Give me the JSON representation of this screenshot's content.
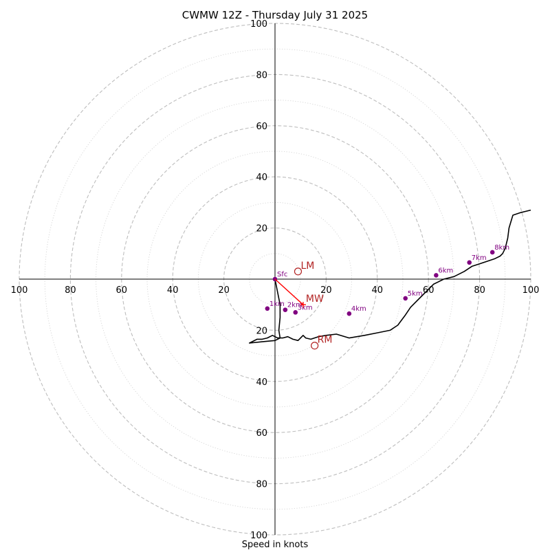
{
  "chart_data": {
    "type": "hodograph",
    "title": "CWMW 12Z - Thursday July 31 2025",
    "xlabel": "Speed in knots",
    "range": [
      -100,
      100
    ],
    "ring_major_step": 20,
    "ring_minor_step": 10,
    "axis_tick_labels": {
      "x": [
        "100",
        "80",
        "60",
        "40",
        "20",
        "20",
        "40",
        "60",
        "80",
        "100"
      ],
      "y": [
        "100",
        "80",
        "60",
        "40",
        "20",
        "20",
        "40",
        "60",
        "80",
        "100"
      ]
    },
    "axis_tick_values": {
      "x": [
        -100,
        -80,
        -60,
        -40,
        -20,
        20,
        40,
        60,
        80,
        100
      ],
      "y": [
        100,
        80,
        60,
        40,
        20,
        -20,
        -40,
        -60,
        -80,
        -100
      ]
    },
    "trace": {
      "color": "#000000",
      "points": [
        [
          0,
          0
        ],
        [
          1,
          -5
        ],
        [
          2,
          -10
        ],
        [
          2,
          -15
        ],
        [
          1.5,
          -20
        ],
        [
          2,
          -23
        ],
        [
          0,
          -24
        ],
        [
          -5,
          -24.5
        ],
        [
          -10,
          -25
        ],
        [
          -7,
          -23.5
        ],
        [
          -5,
          -23.5
        ],
        [
          -3,
          -23
        ],
        [
          -1,
          -22
        ],
        [
          1,
          -23
        ],
        [
          3,
          -23
        ],
        [
          5,
          -22.5
        ],
        [
          7,
          -23.5
        ],
        [
          9,
          -24
        ],
        [
          11,
          -22
        ],
        [
          12,
          -23
        ],
        [
          14,
          -23.5
        ],
        [
          17,
          -22.5
        ],
        [
          20,
          -22
        ],
        [
          24,
          -21.5
        ],
        [
          29,
          -23
        ],
        [
          35,
          -22
        ],
        [
          40,
          -21
        ],
        [
          45,
          -20
        ],
        [
          48,
          -18
        ],
        [
          51,
          -14
        ],
        [
          53,
          -11
        ],
        [
          57,
          -7
        ],
        [
          62,
          -2
        ],
        [
          66,
          0
        ],
        [
          70,
          1
        ],
        [
          74,
          3
        ],
        [
          77,
          5
        ],
        [
          80,
          6
        ],
        [
          83,
          7
        ],
        [
          86,
          8
        ],
        [
          88,
          9
        ],
        [
          89,
          10
        ],
        [
          90,
          12
        ],
        [
          91,
          16
        ],
        [
          91.5,
          20
        ],
        [
          93,
          25
        ],
        [
          96,
          26
        ],
        [
          100,
          27
        ]
      ]
    },
    "height_markers": {
      "color": "#800080",
      "items": [
        {
          "label": "Sfc",
          "u": 0,
          "v": 0
        },
        {
          "label": "1km",
          "u": -3,
          "v": -11.5
        },
        {
          "label": "2km",
          "u": 4,
          "v": -12
        },
        {
          "label": "3km",
          "u": 8,
          "v": -13
        },
        {
          "label": "4km",
          "u": 29,
          "v": -13.5
        },
        {
          "label": "5km",
          "u": 51,
          "v": -7.5
        },
        {
          "label": "6km",
          "u": 63,
          "v": 1.5
        },
        {
          "label": "7km",
          "u": 76,
          "v": 6.5
        },
        {
          "label": "8km",
          "u": 85,
          "v": 10.5
        }
      ]
    },
    "storm_motion": {
      "color": "#b22222",
      "points": [
        {
          "label": "LM",
          "u": 9,
          "v": 3
        },
        {
          "label": "MW",
          "u": 11,
          "v": -10
        },
        {
          "label": "RM",
          "u": 15.5,
          "v": -26
        }
      ],
      "mean_wind_vector": {
        "from": [
          0,
          0
        ],
        "to": [
          11,
          -10
        ],
        "color": "#ff0000"
      }
    },
    "grid": true
  }
}
